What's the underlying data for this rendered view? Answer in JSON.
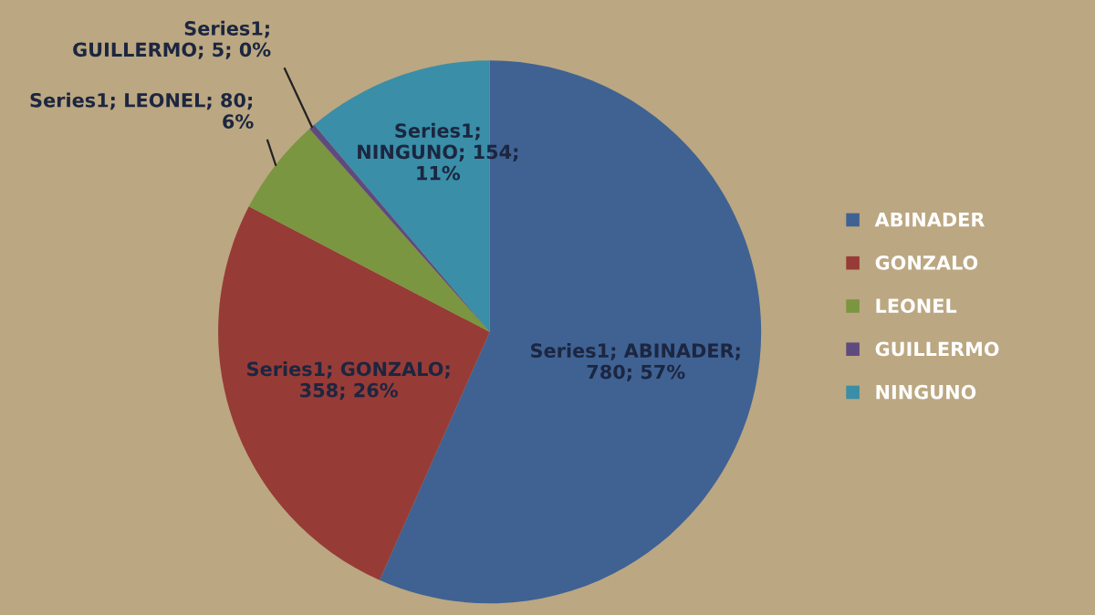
{
  "chart_data": {
    "type": "pie",
    "categories": [
      "ABINADER",
      "GONZALO",
      "LEONEL",
      "GUILLERMO",
      "NINGUNO"
    ],
    "values": [
      780,
      358,
      80,
      5,
      154
    ],
    "colors": [
      "#3f6293",
      "#973b37",
      "#7a9640",
      "#5f4a7f",
      "#3a8ea7"
    ],
    "value_labels": [
      "Series1; ABINADER; 780; 57%",
      "Series1; GONZALO; 358; 26%",
      "Series1; LEONEL; 80; 6%",
      "Series1; GUILLERMO; 5; 0%",
      "Series1; NINGUNO; 154; 11%"
    ],
    "legend": "right"
  }
}
